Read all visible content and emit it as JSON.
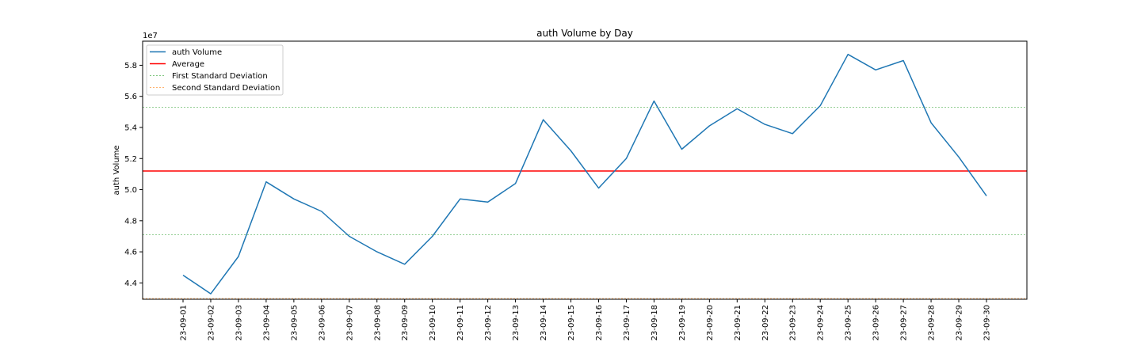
{
  "chart_data": {
    "type": "line",
    "title": "auth Volume by Day",
    "xlabel": "",
    "ylabel": "auth Volume",
    "y_offset_label": "1e7",
    "ylim": [
      42.95,
      59.55
    ],
    "yticks": [
      44,
      46,
      48,
      50,
      52,
      54,
      56,
      58
    ],
    "ytick_labels": [
      "4.4",
      "4.6",
      "4.8",
      "5.0",
      "5.2",
      "5.4",
      "5.6",
      "5.8"
    ],
    "categories": [
      "23-09-01",
      "23-09-02",
      "23-09-03",
      "23-09-04",
      "23-09-05",
      "23-09-06",
      "23-09-07",
      "23-09-08",
      "23-09-09",
      "23-09-10",
      "23-09-11",
      "23-09-12",
      "23-09-13",
      "23-09-14",
      "23-09-15",
      "23-09-16",
      "23-09-17",
      "23-09-18",
      "23-09-19",
      "23-09-20",
      "23-09-21",
      "23-09-22",
      "23-09-23",
      "23-09-24",
      "23-09-25",
      "23-09-26",
      "23-09-27",
      "23-09-28",
      "23-09-29",
      "23-09-30"
    ],
    "series": [
      {
        "name": "auth Volume",
        "color": "#1f77b4",
        "style": "solid",
        "values": [
          44.5,
          43.3,
          45.7,
          50.5,
          49.4,
          48.6,
          47.0,
          46.0,
          45.2,
          47.0,
          49.4,
          49.2,
          50.4,
          54.5,
          52.5,
          50.1,
          52.0,
          55.7,
          52.6,
          54.1,
          55.2,
          54.2,
          53.6,
          55.4,
          58.7,
          57.7,
          58.3,
          54.3,
          52.1,
          49.6
        ]
      }
    ],
    "reference_lines": [
      {
        "name": "Average",
        "value": 51.2,
        "color": "#ff0000",
        "style": "solid"
      },
      {
        "name": "First Standard Deviation",
        "value": 55.3,
        "color": "#2ca02c",
        "style": "dotted"
      },
      {
        "name": "First Standard Deviation",
        "value": 47.1,
        "color": "#2ca02c",
        "style": "dotted"
      },
      {
        "name": "Second Standard Deviation",
        "value": 43.0,
        "color": "#ff7f0e",
        "style": "dotted"
      }
    ],
    "legend": {
      "placement": "top-left",
      "entries": [
        {
          "label": "auth Volume",
          "color": "#1f77b4",
          "style": "solid"
        },
        {
          "label": "Average",
          "color": "#ff0000",
          "style": "solid"
        },
        {
          "label": "First Standard Deviation",
          "color": "#2ca02c",
          "style": "dotted"
        },
        {
          "label": "Second Standard Deviation",
          "color": "#ff7f0e",
          "style": "dotted"
        }
      ]
    },
    "grid": false
  }
}
